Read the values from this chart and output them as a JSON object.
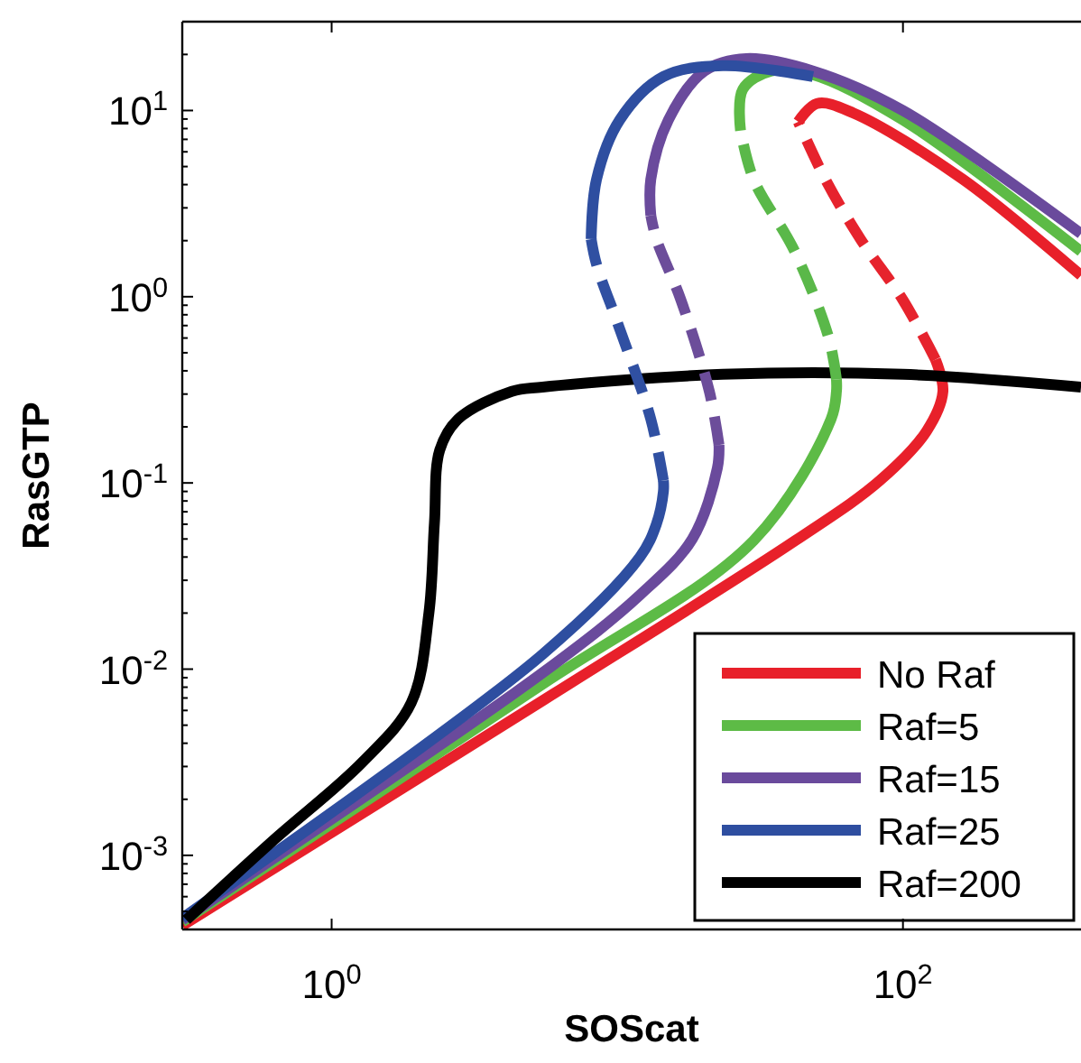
{
  "chart_data": {
    "type": "line",
    "xlabel": "SOScat",
    "ylabel": "RasGTP",
    "log": "xy",
    "grid": false,
    "legend": "bottom right",
    "xlim": [
      0.3,
      420
    ],
    "ylim": [
      0.0004,
      30
    ],
    "xticks": [
      {
        "value": 1,
        "label": "10$^{0}$"
      },
      {
        "value": 100,
        "label": "10$^{2}$"
      }
    ],
    "yticks": [
      {
        "value": 0.0005,
        "label": null
      },
      {
        "value": 0.0006,
        "label": null
      },
      {
        "value": 0.0007,
        "label": null
      },
      {
        "value": 0.0008,
        "label": null
      },
      {
        "value": 0.0009,
        "label": null
      },
      {
        "value": 0.001,
        "label": "10$^{-3}$"
      },
      {
        "value": 0.002,
        "label": null
      },
      {
        "value": 0.003,
        "label": null
      },
      {
        "value": 0.004,
        "label": null
      },
      {
        "value": 0.005,
        "label": null
      },
      {
        "value": 0.006,
        "label": null
      },
      {
        "value": 0.007,
        "label": null
      },
      {
        "value": 0.008,
        "label": null
      },
      {
        "value": 0.009,
        "label": null
      },
      {
        "value": 0.01,
        "label": "10$^{-2}$"
      },
      {
        "value": 0.02,
        "label": null
      },
      {
        "value": 0.03,
        "label": null
      },
      {
        "value": 0.04,
        "label": null
      },
      {
        "value": 0.05,
        "label": null
      },
      {
        "value": 0.06,
        "label": null
      },
      {
        "value": 0.07,
        "label": null
      },
      {
        "value": 0.08,
        "label": null
      },
      {
        "value": 0.09,
        "label": null
      },
      {
        "value": 0.1,
        "label": "10$^{-1}$"
      },
      {
        "value": 0.2,
        "label": null
      },
      {
        "value": 0.3,
        "label": null
      },
      {
        "value": 0.4,
        "label": null
      },
      {
        "value": 0.5,
        "label": null
      },
      {
        "value": 0.6,
        "label": null
      },
      {
        "value": 0.7,
        "label": null
      },
      {
        "value": 0.8,
        "label": null
      },
      {
        "value": 0.9,
        "label": null
      },
      {
        "value": 1,
        "label": "10$^{0}$"
      },
      {
        "value": 2,
        "label": null
      },
      {
        "value": 3,
        "label": null
      },
      {
        "value": 4,
        "label": null
      },
      {
        "value": 5,
        "label": null
      },
      {
        "value": 6,
        "label": null
      },
      {
        "value": 7,
        "label": null
      },
      {
        "value": 8,
        "label": null
      },
      {
        "value": 9,
        "label": null
      },
      {
        "value": 10,
        "label": "10$^{1}$"
      },
      {
        "value": 20,
        "label": null
      }
    ],
    "series": [
      {
        "name": "No Raf",
        "color": "#e8202a",
        "line_style": "solid",
        "x": [
          0.3,
          5.5,
          42,
          83,
          121,
          138,
          130,
          null,
          43,
          50,
          67,
          162,
          420
        ],
        "values": [
          0.00042,
          0.0068,
          0.049,
          0.103,
          0.19,
          0.31,
          0.46,
          null,
          8.7,
          10.9,
          9.7,
          4.27,
          1.3
        ]
      },
      {
        "name": "Raf=5",
        "color": "#5dbb46",
        "line_style": "solid",
        "x": [
          0.3,
          5.47,
          30,
          56,
          58.5,
          58.5,
          null,
          27,
          27.5,
          34.6,
          48.4,
          100,
          420
        ],
        "values": [
          0.00044,
          0.0083,
          0.049,
          0.22,
          0.31,
          0.36,
          null,
          7.8,
          13,
          16.3,
          15.6,
          8.9,
          1.75
        ]
      },
      {
        "name": "Raf=15",
        "color": "#6a4a9c",
        "line_style": "solid",
        "x": [
          0.3,
          5.5,
          12,
          18.3,
          22.4,
          22.7,
          null,
          13.1,
          13.1,
          15.1,
          20.2,
          28.3,
          48.4,
          100,
          420
        ],
        "values": [
          0.00045,
          0.0096,
          0.025,
          0.05,
          0.12,
          0.16,
          null,
          2.73,
          4.27,
          8.9,
          16.3,
          19,
          16.3,
          10,
          2.18
        ]
      },
      {
        "name": "Raf=25",
        "color": "#2e4ea0",
        "line_style": "solid",
        "x": [
          0.3,
          5.47,
          12,
          13.7,
          14.5,
          14.5,
          null,
          8.1,
          8.46,
          10.2,
          14.5,
          23.4,
          48.4
        ],
        "values": [
          0.00046,
          0.012,
          0.04,
          0.06,
          0.09,
          0.103,
          null,
          2.04,
          4.27,
          8.9,
          15.2,
          17.4,
          15.2
        ]
      },
      {
        "name": "Raf=200",
        "color": "#000000",
        "line_style": "solid",
        "x": [
          0.31,
          0.62,
          1.28,
          1.9,
          2.19,
          2.29,
          2.39,
          2.77,
          4.27,
          5.47,
          23.4,
          100,
          420
        ],
        "values": [
          0.00045,
          0.00119,
          0.00316,
          0.0066,
          0.02,
          0.061,
          0.15,
          0.22,
          0.31,
          0.327,
          0.383,
          0.383,
          0.327
        ]
      },
      {
        "color": "#e6232d",
        "line_style": "dashed",
        "x": [
          130,
          100,
          71,
          53.5,
          43
        ],
        "values": [
          0.46,
          0.96,
          2.04,
          4.27,
          8.7
        ]
      },
      {
        "color": "#5ab849",
        "line_style": "dashed",
        "x": [
          58.5,
          55,
          41.8,
          30,
          27
        ],
        "values": [
          0.36,
          0.6,
          1.75,
          4.27,
          7.8
        ]
      },
      {
        "color": "#6c4d9a",
        "line_style": "dashed",
        "x": [
          22.7,
          21,
          16.7,
          13.7,
          13.1
        ],
        "values": [
          0.16,
          0.31,
          0.96,
          2.04,
          2.73
        ]
      },
      {
        "color": "#3050a2",
        "line_style": "dashed",
        "x": [
          14.5,
          13.1,
          10.2,
          8.46,
          8.1
        ],
        "values": [
          0.103,
          0.22,
          0.67,
          1.49,
          2.04
        ]
      }
    ]
  }
}
